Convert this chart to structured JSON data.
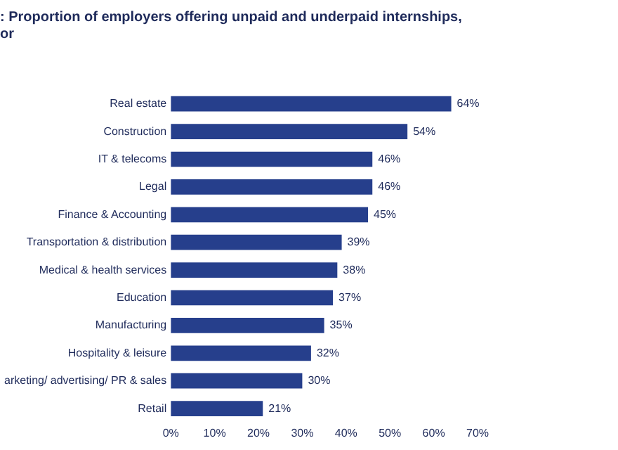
{
  "chart_data": {
    "type": "bar",
    "orientation": "horizontal",
    "title": ": Proportion of employers offering unpaid and underpaid internships,\nor",
    "categories": [
      "Real estate",
      "Construction",
      "IT & telecoms",
      "Legal",
      "Finance & Accounting",
      "Transportation & distribution",
      "Medical & health services",
      "Education",
      "Manufacturing",
      "Hospitality & leisure",
      "arketing/ advertising/ PR & sales",
      "Retail"
    ],
    "values": [
      64,
      54,
      46,
      46,
      45,
      39,
      38,
      37,
      35,
      32,
      30,
      21
    ],
    "value_labels": [
      "64%",
      "54%",
      "46%",
      "46%",
      "45%",
      "39%",
      "38%",
      "37%",
      "35%",
      "32%",
      "30%",
      "21%"
    ],
    "color": "#263f8c",
    "xlim": [
      0,
      70
    ],
    "xticks": [
      {
        "value": 0,
        "label": "0%"
      },
      {
        "value": 10,
        "label": "10%"
      },
      {
        "value": 20,
        "label": "20%"
      },
      {
        "value": 30,
        "label": "30%"
      },
      {
        "value": 40,
        "label": "40%"
      },
      {
        "value": 50,
        "label": "50%"
      },
      {
        "value": 60,
        "label": "60%"
      },
      {
        "value": 70,
        "label": "70%"
      }
    ],
    "grid": false,
    "legend": false
  }
}
